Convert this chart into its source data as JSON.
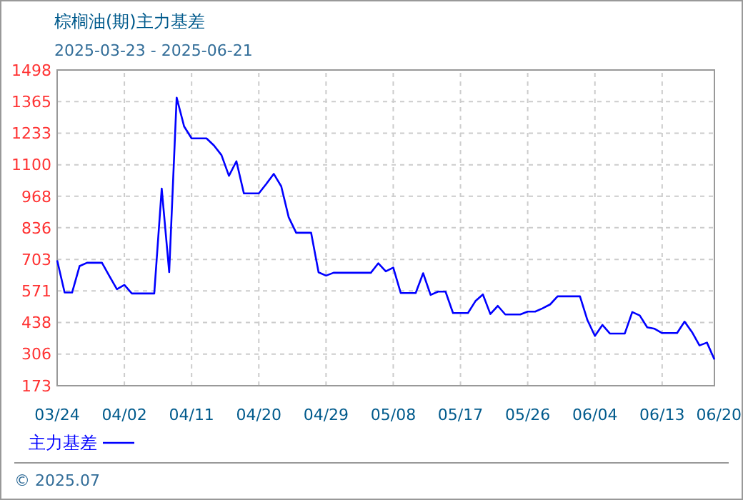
{
  "chart_data": {
    "type": "line",
    "title": "棕榈油(期)主力基差",
    "subtitle": "2025-03-23 - 2025-06-21",
    "x": [
      "2025-03-24",
      "2025-03-25",
      "2025-03-26",
      "2025-03-27",
      "2025-03-28",
      "2025-03-30",
      "2025-03-31",
      "2025-04-01",
      "2025-04-02",
      "2025-04-03",
      "2025-04-06",
      "2025-04-07",
      "2025-04-08",
      "2025-04-09",
      "2025-04-10",
      "2025-04-11",
      "2025-04-13",
      "2025-04-14",
      "2025-04-15",
      "2025-04-16",
      "2025-04-17",
      "2025-04-18",
      "2025-04-20",
      "2025-04-21",
      "2025-04-22",
      "2025-04-23",
      "2025-04-24",
      "2025-04-25",
      "2025-04-27",
      "2025-04-28",
      "2025-04-29",
      "2025-04-30",
      "2025-05-05",
      "2025-05-06",
      "2025-05-07",
      "2025-05-08",
      "2025-05-09",
      "2025-05-11",
      "2025-05-12",
      "2025-05-13",
      "2025-05-14",
      "2025-05-15",
      "2025-05-16",
      "2025-05-18",
      "2025-05-19",
      "2025-05-20",
      "2025-05-21",
      "2025-05-22",
      "2025-05-23",
      "2025-05-25",
      "2025-05-26",
      "2025-05-27",
      "2025-05-28",
      "2025-05-29",
      "2025-05-30",
      "2025-06-02",
      "2025-06-03",
      "2025-06-04",
      "2025-06-05",
      "2025-06-06",
      "2025-06-08",
      "2025-06-09",
      "2025-06-10",
      "2025-06-11",
      "2025-06-12",
      "2025-06-13",
      "2025-06-15",
      "2025-06-16",
      "2025-06-17",
      "2025-06-18",
      "2025-06-19",
      "2025-06-20"
    ],
    "series": [
      {
        "name": "主力基差",
        "color": "#0000ff",
        "values": [
          699,
          564,
          564,
          675,
          689,
          689,
          633,
          578,
          596,
          560,
          560,
          1000,
          650,
          1382,
          1261,
          1211,
          1211,
          1181,
          1141,
          1054,
          1115,
          980,
          980,
          1020,
          1062,
          1010,
          880,
          815,
          815,
          649,
          635,
          647,
          647,
          687,
          653,
          669,
          562,
          562,
          645,
          554,
          568,
          568,
          478,
          478,
          528,
          556,
          474,
          508,
          472,
          472,
          484,
          484,
          498,
          514,
          548,
          548,
          448,
          382,
          428,
          392,
          392,
          482,
          468,
          418,
          412,
          394,
          394,
          442,
          398,
          342,
          354,
          283
        ]
      }
    ],
    "xlim": [
      "2025-03-24",
      "2025-06-20"
    ],
    "xticks": [
      {
        "value": "2025-03-24",
        "label": "03/24"
      },
      {
        "value": "2025-04-02",
        "label": "04/02"
      },
      {
        "value": "2025-04-11",
        "label": "04/11"
      },
      {
        "value": "2025-04-20",
        "label": "04/20"
      },
      {
        "value": "2025-04-29",
        "label": "04/29"
      },
      {
        "value": "2025-05-08",
        "label": "05/08"
      },
      {
        "value": "2025-05-17",
        "label": "05/17"
      },
      {
        "value": "2025-05-26",
        "label": "05/26"
      },
      {
        "value": "2025-06-04",
        "label": "06/04"
      },
      {
        "value": "2025-06-13",
        "label": "06/13"
      },
      {
        "value": "2025-06-20",
        "label": "06/20"
      }
    ],
    "ylim": [
      173,
      1498
    ],
    "yticks": [
      173,
      306,
      438,
      571,
      703,
      836,
      968,
      1100,
      1233,
      1365,
      1498
    ],
    "grid": true,
    "legend": "bottom left",
    "line_style": "solid",
    "marker": "none",
    "annotations": [
      "© 2025.07"
    ]
  }
}
